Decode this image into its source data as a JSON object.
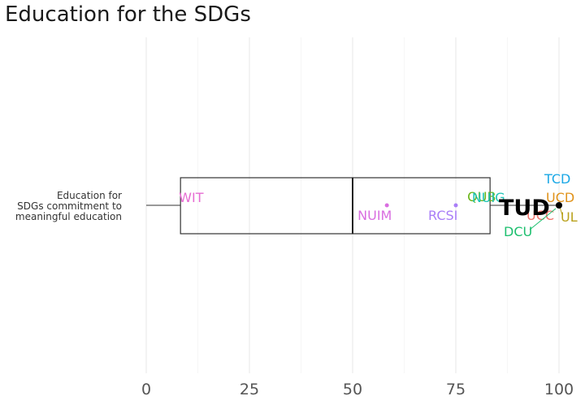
{
  "chart_data": {
    "type": "boxplot",
    "title": "Education for the SDGs",
    "category_label": [
      "Education for",
      "SDGs commitment to",
      "meaningful education"
    ],
    "xlim": [
      0,
      100
    ],
    "x_ticks": [
      0,
      25,
      50,
      75,
      100
    ],
    "grid": "vertical",
    "box": {
      "whisker_low": 0,
      "q1": 8.3,
      "median": 50,
      "q3": 83.3,
      "whisker_high": 100
    },
    "points": [
      {
        "name": "WIT",
        "x": 8.3,
        "color": "#e66bd2"
      },
      {
        "name": "NUIM",
        "x": 58.3,
        "color": "#d96ee0"
      },
      {
        "name": "RCSI",
        "x": 75,
        "color": "#a97ef7"
      },
      {
        "name": "QUB",
        "x": 83.3,
        "color": "#6ab517"
      },
      {
        "name": "NUIG",
        "x": 91.7,
        "color": "#1ec3b6"
      },
      {
        "name": "TCD",
        "x": 100,
        "color": "#1ba8e6"
      },
      {
        "name": "UCD",
        "x": 100,
        "color": "#e0921a"
      },
      {
        "name": "UL",
        "x": 100,
        "color": "#b9a11b"
      },
      {
        "name": "UCC",
        "x": 100,
        "color": "#f0726a"
      },
      {
        "name": "DCU",
        "x": 100,
        "color": "#1cbf6e"
      },
      {
        "name": "TUD",
        "x": 100,
        "color": "#000000",
        "highlight": true
      }
    ]
  }
}
